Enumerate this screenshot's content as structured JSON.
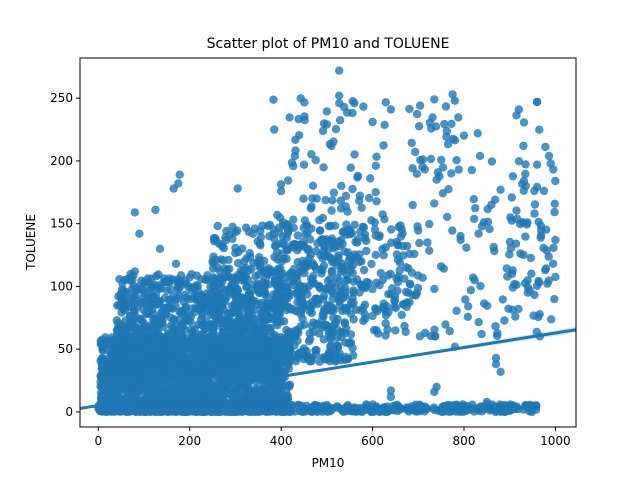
{
  "chart_data": {
    "type": "scatter",
    "title": "Scatter plot of PM10 and TOLUENE",
    "xlabel": "PM10",
    "ylabel": "TOLUENE",
    "xlim": [
      -40,
      1045
    ],
    "ylim": [
      -12,
      282
    ],
    "xticks": [
      0,
      200,
      400,
      600,
      800,
      1000
    ],
    "yticks": [
      0,
      50,
      100,
      150,
      200,
      250
    ],
    "color": "#1f77b4",
    "grid": false,
    "legend": "none",
    "regression": {
      "x": [
        -40,
        1045
      ],
      "y": [
        2.8,
        65.5
      ],
      "ci_halfwidth_end": 2.5
    },
    "clusters": [
      {
        "x": [
          5,
          420
        ],
        "y": [
          0,
          60
        ],
        "n": 1800
      },
      {
        "x": [
          40,
          400
        ],
        "y": [
          30,
          110
        ],
        "n": 900
      },
      {
        "x": [
          250,
          560
        ],
        "y": [
          40,
          150
        ],
        "n": 600
      },
      {
        "x": [
          380,
          700
        ],
        "y": [
          80,
          160
        ],
        "n": 220
      },
      {
        "x": [
          0,
          960
        ],
        "y": [
          0,
          6
        ],
        "n": 500
      },
      {
        "x": [
          560,
          1000
        ],
        "y": [
          60,
          200
        ],
        "n": 140
      },
      {
        "x": [
          380,
          640
        ],
        "y": [
          160,
          250
        ],
        "n": 60
      },
      {
        "x": [
          680,
          800
        ],
        "y": [
          190,
          250
        ],
        "n": 30
      },
      {
        "x": [
          900,
          1000
        ],
        "y": [
          100,
          250
        ],
        "n": 40
      }
    ],
    "points": [
      {
        "x": 527,
        "y": 272
      },
      {
        "x": 527,
        "y": 252
      },
      {
        "x": 527,
        "y": 246
      },
      {
        "x": 775,
        "y": 253
      },
      {
        "x": 780,
        "y": 248
      },
      {
        "x": 735,
        "y": 249
      },
      {
        "x": 960,
        "y": 247
      },
      {
        "x": 920,
        "y": 241
      },
      {
        "x": 960,
        "y": 247
      },
      {
        "x": 640,
        "y": 241
      },
      {
        "x": 500,
        "y": 229
      },
      {
        "x": 510,
        "y": 212
      },
      {
        "x": 178,
        "y": 189
      },
      {
        "x": 175,
        "y": 182
      },
      {
        "x": 165,
        "y": 178
      },
      {
        "x": 80,
        "y": 159
      },
      {
        "x": 125,
        "y": 161
      },
      {
        "x": 305,
        "y": 178
      },
      {
        "x": 830,
        "y": 222
      },
      {
        "x": 835,
        "y": 204
      },
      {
        "x": 930,
        "y": 212
      },
      {
        "x": 450,
        "y": 197
      },
      {
        "x": 430,
        "y": 204
      },
      {
        "x": 600,
        "y": 231
      },
      {
        "x": 880,
        "y": 177
      },
      {
        "x": 860,
        "y": 165
      },
      {
        "x": 820,
        "y": 107
      },
      {
        "x": 815,
        "y": 97
      },
      {
        "x": 1000,
        "y": 137
      },
      {
        "x": 995,
        "y": 118
      },
      {
        "x": 960,
        "y": 197
      },
      {
        "x": 975,
        "y": 176
      },
      {
        "x": 935,
        "y": 180
      },
      {
        "x": 740,
        "y": 185
      },
      {
        "x": 720,
        "y": 135
      },
      {
        "x": 735,
        "y": 98
      },
      {
        "x": 640,
        "y": 17
      },
      {
        "x": 640,
        "y": 12
      },
      {
        "x": 740,
        "y": 20
      },
      {
        "x": 735,
        "y": 16
      },
      {
        "x": 900,
        "y": 1
      },
      {
        "x": 950,
        "y": 3
      },
      {
        "x": 850,
        "y": 8
      },
      {
        "x": 775,
        "y": 5
      },
      {
        "x": 860,
        "y": 2
      },
      {
        "x": 870,
        "y": 43
      },
      {
        "x": 870,
        "y": 38
      },
      {
        "x": 880,
        "y": 32
      },
      {
        "x": 715,
        "y": 63
      },
      {
        "x": 780,
        "y": 52
      },
      {
        "x": 650,
        "y": 65
      },
      {
        "x": 90,
        "y": 142
      },
      {
        "x": 80,
        "y": 112
      },
      {
        "x": 135,
        "y": 130
      },
      {
        "x": 170,
        "y": 118
      },
      {
        "x": 250,
        "y": 120
      },
      {
        "x": 265,
        "y": 101
      }
    ]
  }
}
